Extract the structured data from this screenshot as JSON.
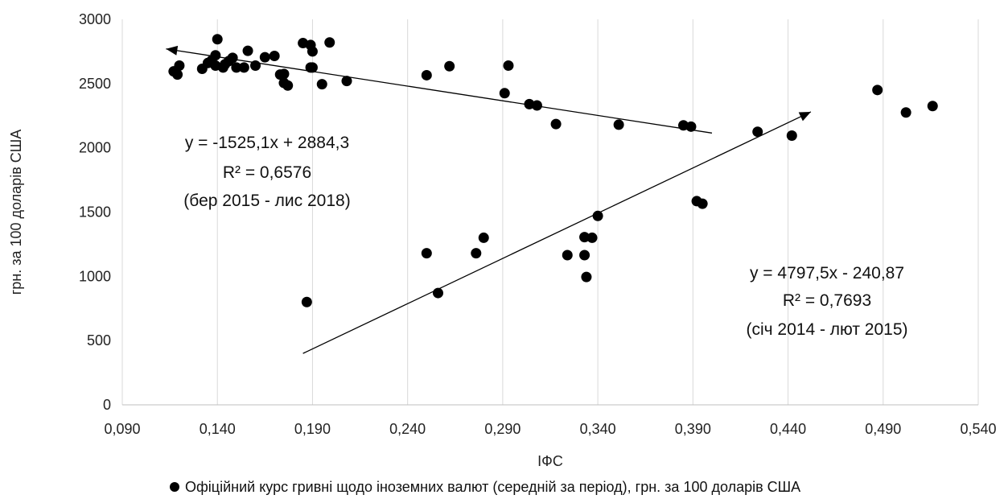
{
  "chart_data": {
    "type": "scatter",
    "title": "",
    "xlabel": "ІФС",
    "ylabel": "грн. за 100 доларів США",
    "xlim": [
      0.09,
      0.54
    ],
    "ylim": [
      0,
      3000
    ],
    "x_ticks": [
      "0,090",
      "0,140",
      "0,190",
      "0,240",
      "0,290",
      "0,340",
      "0,390",
      "0,440",
      "0,490",
      "0,540"
    ],
    "y_ticks": [
      "0",
      "500",
      "1000",
      "1500",
      "2000",
      "2500",
      "3000"
    ],
    "grid": "vertical",
    "legend_position": "bottom",
    "point_color": "#000000",
    "series": [
      {
        "name": "Офіційний курс гривні щодо іноземних валют (середній за період), грн. за 100 доларів США",
        "points": [
          [
            0.117,
            2595
          ],
          [
            0.119,
            2570
          ],
          [
            0.12,
            2640
          ],
          [
            0.132,
            2615
          ],
          [
            0.135,
            2660
          ],
          [
            0.137,
            2680
          ],
          [
            0.139,
            2640
          ],
          [
            0.139,
            2720
          ],
          [
            0.14,
            2845
          ],
          [
            0.143,
            2625
          ],
          [
            0.144,
            2650
          ],
          [
            0.146,
            2675
          ],
          [
            0.148,
            2700
          ],
          [
            0.15,
            2625
          ],
          [
            0.154,
            2625
          ],
          [
            0.156,
            2755
          ],
          [
            0.16,
            2640
          ],
          [
            0.165,
            2705
          ],
          [
            0.17,
            2715
          ],
          [
            0.173,
            2570
          ],
          [
            0.175,
            2575
          ],
          [
            0.175,
            2505
          ],
          [
            0.177,
            2485
          ],
          [
            0.185,
            2815
          ],
          [
            0.189,
            2800
          ],
          [
            0.189,
            2625
          ],
          [
            0.19,
            2625
          ],
          [
            0.19,
            2750
          ],
          [
            0.195,
            2495
          ],
          [
            0.199,
            2820
          ],
          [
            0.208,
            2520
          ],
          [
            0.25,
            2565
          ],
          [
            0.262,
            2635
          ],
          [
            0.291,
            2425
          ],
          [
            0.293,
            2640
          ],
          [
            0.304,
            2340
          ],
          [
            0.308,
            2330
          ],
          [
            0.318,
            2185
          ],
          [
            0.351,
            2180
          ],
          [
            0.385,
            2175
          ],
          [
            0.389,
            2165
          ],
          [
            0.487,
            2450
          ],
          [
            0.502,
            2275
          ],
          [
            0.516,
            2325
          ],
          [
            0.424,
            2125
          ],
          [
            0.442,
            2095
          ],
          [
            0.392,
            1585
          ],
          [
            0.395,
            1565
          ],
          [
            0.187,
            800
          ],
          [
            0.25,
            1180
          ],
          [
            0.256,
            870
          ],
          [
            0.276,
            1180
          ],
          [
            0.28,
            1300
          ],
          [
            0.324,
            1165
          ],
          [
            0.333,
            1305
          ],
          [
            0.333,
            1165
          ],
          [
            0.334,
            995
          ],
          [
            0.337,
            1300
          ],
          [
            0.34,
            1470
          ]
        ]
      }
    ],
    "trendlines": [
      {
        "x_start": 0.113,
        "y_start": 2770,
        "x_end": 0.4,
        "y_end": 2115,
        "arrow": "start",
        "color": "#000000"
      },
      {
        "x_start": 0.185,
        "y_start": 400,
        "x_end": 0.452,
        "y_end": 2280,
        "arrow": "end",
        "color": "#000000"
      }
    ],
    "annotations": [
      {
        "lines": [
          "y = -1525,1x + 2884,3",
          "R² = 0,6576",
          "(бер 2015 - лис 2018)"
        ]
      },
      {
        "lines": [
          "y = 4797,5x - 240,87",
          "R² = 0,7693",
          "(січ 2014 - лют 2015)"
        ]
      }
    ],
    "legend": {
      "entries": [
        "Офіційний курс гривні щодо іноземних валют (середній за період), грн. за 100 доларів США"
      ]
    }
  }
}
